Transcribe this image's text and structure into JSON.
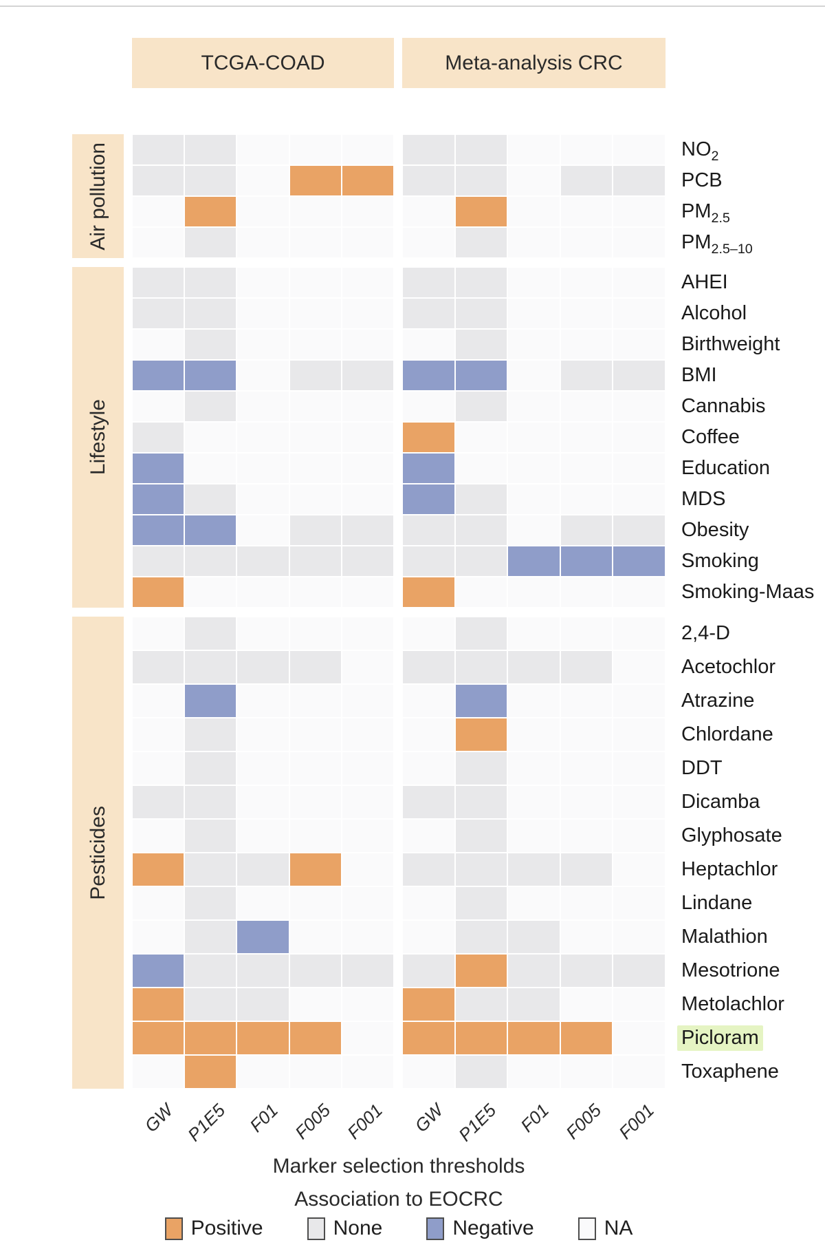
{
  "figure": {
    "panel_headers": [
      {
        "label": "TCGA-COAD"
      },
      {
        "label": "Meta-analysis CRC"
      }
    ],
    "thresholds": [
      "GW",
      "P1E5",
      "F01",
      "F005",
      "F001"
    ],
    "xlabel": "Marker selection thresholds",
    "legend_title": "Association to EOCRC",
    "legend": [
      {
        "label": "Positive",
        "value": "P"
      },
      {
        "label": "None",
        "value": "N"
      },
      {
        "label": "Negative",
        "value": "G"
      },
      {
        "label": "NA",
        "value": "A"
      }
    ]
  },
  "colors": {
    "positive": "#e9a365",
    "none": "#e8e8ea",
    "negative": "#8f9dc9",
    "na": "#fafafb",
    "band": "#f8e4c8",
    "header": "#f8e4c8",
    "highlight": "#e5f4c3"
  },
  "chart_data": {
    "type": "heatmap",
    "panels": [
      "TCGA-COAD",
      "Meta-analysis CRC"
    ],
    "columns": [
      "GW",
      "P1E5",
      "F01",
      "F005",
      "F001"
    ],
    "value_legend": {
      "P": "Positive",
      "N": "None",
      "G": "Negative",
      "A": "NA"
    },
    "highlighted_row": "Picloram",
    "sections": [
      {
        "name": "Air pollution",
        "rows": [
          {
            "label": "NO",
            "sub": "2",
            "tcga": "NNAAA",
            "meta": "NNAAA"
          },
          {
            "label": "PCB",
            "sub": "",
            "tcga": "NNAPP",
            "meta": "NNANN"
          },
          {
            "label": "PM",
            "sub": "2.5",
            "tcga": "APAAA",
            "meta": "APAAA"
          },
          {
            "label": "PM",
            "sub": "2.5–10",
            "tcga": "ANAAA",
            "meta": "ANAAA"
          }
        ]
      },
      {
        "name": "Lifestyle",
        "rows": [
          {
            "label": "AHEI",
            "sub": "",
            "tcga": "NNAAA",
            "meta": "NNAAA"
          },
          {
            "label": "Alcohol",
            "sub": "",
            "tcga": "NNAAA",
            "meta": "NNAAA"
          },
          {
            "label": "Birthweight",
            "sub": "",
            "tcga": "ANAAA",
            "meta": "ANAAA"
          },
          {
            "label": "BMI",
            "sub": "",
            "tcga": "GGANN",
            "meta": "GGANN"
          },
          {
            "label": "Cannabis",
            "sub": "",
            "tcga": "ANAAA",
            "meta": "ANAAA"
          },
          {
            "label": "Coffee",
            "sub": "",
            "tcga": "NAAAA",
            "meta": "PAAAA"
          },
          {
            "label": "Education",
            "sub": "",
            "tcga": "GAAAA",
            "meta": "GAAAA"
          },
          {
            "label": "MDS",
            "sub": "",
            "tcga": "GNAAA",
            "meta": "GNAAA"
          },
          {
            "label": "Obesity",
            "sub": "",
            "tcga": "GGANN",
            "meta": "NNANN"
          },
          {
            "label": "Smoking",
            "sub": "",
            "tcga": "NNNNN",
            "meta": "NNGGG"
          },
          {
            "label": "Smoking-Maas",
            "sub": "",
            "tcga": "PAAAA",
            "meta": "PAAAA"
          }
        ]
      },
      {
        "name": "Pesticides",
        "rows": [
          {
            "label": "2,4-D",
            "sub": "",
            "tcga": "ANAAA",
            "meta": "ANAAA"
          },
          {
            "label": "Acetochlor",
            "sub": "",
            "tcga": "NNNNA",
            "meta": "NNNNA"
          },
          {
            "label": "Atrazine",
            "sub": "",
            "tcga": "AGAAA",
            "meta": "AGAAA"
          },
          {
            "label": "Chlordane",
            "sub": "",
            "tcga": "ANAAA",
            "meta": "APAAA"
          },
          {
            "label": "DDT",
            "sub": "",
            "tcga": "ANAAA",
            "meta": "ANAAA"
          },
          {
            "label": "Dicamba",
            "sub": "",
            "tcga": "NNAAA",
            "meta": "NNAAA"
          },
          {
            "label": "Glyphosate",
            "sub": "",
            "tcga": "ANAAA",
            "meta": "ANAAA"
          },
          {
            "label": "Heptachlor",
            "sub": "",
            "tcga": "PNNPA",
            "meta": "NNNNA"
          },
          {
            "label": "Lindane",
            "sub": "",
            "tcga": "ANAAA",
            "meta": "ANAAA"
          },
          {
            "label": "Malathion",
            "sub": "",
            "tcga": "ANGAA",
            "meta": "ANNAA"
          },
          {
            "label": "Mesotrione",
            "sub": "",
            "tcga": "GNNNN",
            "meta": "NPNNN"
          },
          {
            "label": "Metolachlor",
            "sub": "",
            "tcga": "PNNAA",
            "meta": "PNNAA"
          },
          {
            "label": "Picloram",
            "sub": "",
            "tcga": "PPPPA",
            "meta": "PPPPA"
          },
          {
            "label": "Toxaphene",
            "sub": "",
            "tcga": "APAAA",
            "meta": "ANAAA"
          }
        ]
      }
    ]
  }
}
